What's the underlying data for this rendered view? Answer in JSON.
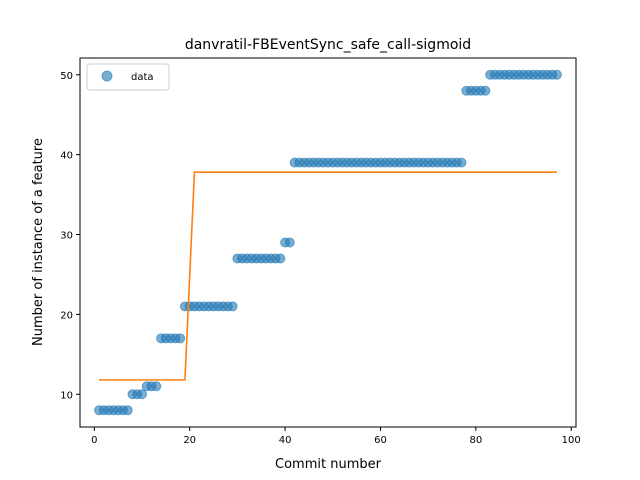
{
  "chart_data": {
    "type": "scatter",
    "title": "danvratil-FBEventSync_safe_call-sigmoid",
    "xlabel": "Commit number",
    "ylabel": "Number of instance of a feature",
    "xlim": [
      -3,
      101
    ],
    "ylim": [
      5.9,
      52.1
    ],
    "xticks": [
      0,
      20,
      40,
      60,
      80,
      100
    ],
    "yticks": [
      10,
      20,
      30,
      40,
      50
    ],
    "grid": false,
    "legend": {
      "position": "top-left",
      "entries": [
        "data"
      ]
    },
    "colors": {
      "data": "#1f77b4",
      "fit": "#ff7f0e"
    },
    "series": [
      {
        "name": "data",
        "kind": "scatter",
        "x": [
          1,
          2,
          3,
          4,
          5,
          6,
          7,
          8,
          9,
          10,
          11,
          12,
          13,
          14,
          15,
          16,
          17,
          18,
          19,
          20,
          21,
          22,
          23,
          24,
          25,
          26,
          27,
          28,
          29,
          30,
          31,
          32,
          33,
          34,
          35,
          36,
          37,
          38,
          39,
          40,
          41,
          42,
          43,
          44,
          45,
          46,
          47,
          48,
          49,
          50,
          51,
          52,
          53,
          54,
          55,
          56,
          57,
          58,
          59,
          60,
          61,
          62,
          63,
          64,
          65,
          66,
          67,
          68,
          69,
          70,
          71,
          72,
          73,
          74,
          75,
          76,
          77,
          78,
          79,
          80,
          81,
          82,
          83,
          84,
          85,
          86,
          87,
          88,
          89,
          90,
          91,
          92,
          93,
          94,
          95,
          96,
          97
        ],
        "y": [
          8,
          8,
          8,
          8,
          8,
          8,
          8,
          10,
          10,
          10,
          11,
          11,
          11,
          17,
          17,
          17,
          17,
          17,
          21,
          21,
          21,
          21,
          21,
          21,
          21,
          21,
          21,
          21,
          21,
          27,
          27,
          27,
          27,
          27,
          27,
          27,
          27,
          27,
          27,
          29,
          29,
          39,
          39,
          39,
          39,
          39,
          39,
          39,
          39,
          39,
          39,
          39,
          39,
          39,
          39,
          39,
          39,
          39,
          39,
          39,
          39,
          39,
          39,
          39,
          39,
          39,
          39,
          39,
          39,
          39,
          39,
          39,
          39,
          39,
          39,
          39,
          39,
          48,
          48,
          48,
          48,
          48,
          50,
          50,
          50,
          50,
          50,
          50,
          50,
          50,
          50,
          50,
          50,
          50,
          50,
          50,
          50
        ]
      },
      {
        "name": "",
        "kind": "line",
        "x": [
          1,
          19,
          21,
          97
        ],
        "y": [
          11.8,
          11.8,
          37.8,
          37.8
        ]
      }
    ]
  }
}
